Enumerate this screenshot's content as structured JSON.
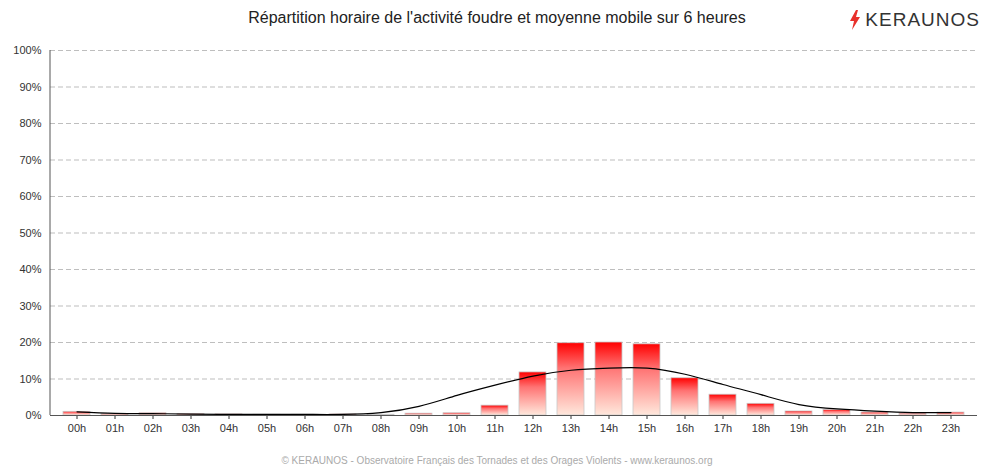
{
  "chart_data": {
    "type": "bar",
    "title": "Répartition horaire de l'activité foudre et moyenne mobile sur 6 heures",
    "logo": "KERAUNOS",
    "caption": "© KERAUNOS - Observatoire Français des Tornades et des Orages Violents - www.keraunos.org",
    "categories": [
      "00h",
      "01h",
      "02h",
      "03h",
      "04h",
      "05h",
      "06h",
      "07h",
      "08h",
      "09h",
      "10h",
      "11h",
      "12h",
      "13h",
      "14h",
      "15h",
      "16h",
      "17h",
      "18h",
      "19h",
      "20h",
      "21h",
      "22h",
      "23h"
    ],
    "series": [
      {
        "type": "bar",
        "color": "#ff0000",
        "values": [
          1.0,
          0.4,
          0.6,
          0.4,
          0.3,
          0.2,
          0.2,
          0.3,
          0.2,
          0.5,
          0.6,
          2.7,
          11.8,
          19.8,
          20.0,
          19.5,
          10.2,
          5.7,
          3.2,
          1.1,
          1.5,
          0.8,
          0.5,
          0.8
        ]
      },
      {
        "type": "line",
        "color": "#000000",
        "line_style": "solid",
        "values": [
          1.0,
          0.6,
          0.5,
          0.4,
          0.3,
          0.3,
          0.3,
          0.3,
          0.8,
          2.5,
          5.5,
          8.3,
          10.8,
          12.4,
          13.0,
          13.0,
          11.3,
          8.5,
          5.7,
          3.0,
          1.8,
          1.2,
          0.8,
          0.8
        ]
      }
    ],
    "ylim": [
      0,
      100
    ],
    "yticks": [
      {
        "value": 0,
        "label": "0%"
      },
      {
        "value": 10,
        "label": "10%"
      },
      {
        "value": 20,
        "label": "20%"
      },
      {
        "value": 30,
        "label": "30%"
      },
      {
        "value": 40,
        "label": "40%"
      },
      {
        "value": 50,
        "label": "50%"
      },
      {
        "value": 60,
        "label": "60%"
      },
      {
        "value": 70,
        "label": "70%"
      },
      {
        "value": 80,
        "label": "80%"
      },
      {
        "value": 90,
        "label": "90%"
      },
      {
        "value": 100,
        "label": "100%"
      }
    ],
    "grid": true
  }
}
